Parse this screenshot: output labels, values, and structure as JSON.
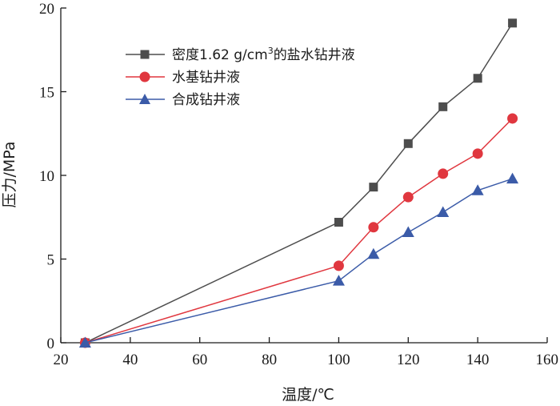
{
  "chart_data": {
    "type": "line",
    "title": "",
    "xlabel": "温度/℃",
    "ylabel": "压力/MPa",
    "xlim": [
      20,
      160
    ],
    "ylim": [
      0,
      20
    ],
    "xticks": [
      20,
      40,
      60,
      80,
      100,
      120,
      140,
      160
    ],
    "yticks": [
      0,
      5,
      10,
      15,
      20
    ],
    "grid": false,
    "legend_position": "top-left",
    "series": [
      {
        "name": "密度1.62 g/cm³的盐水钻井液",
        "label_main": "密度1.62 g/cm",
        "label_sup": "3",
        "label_tail": "的盐水钻井液",
        "marker": "square",
        "color": "#4d4d4d",
        "x": [
          27,
          100,
          110,
          120,
          130,
          140,
          150
        ],
        "y": [
          0,
          7.2,
          9.3,
          11.9,
          14.1,
          15.8,
          19.1
        ]
      },
      {
        "name": "水基钻井液",
        "marker": "circle",
        "color": "#e0373f",
        "x": [
          27,
          100,
          110,
          120,
          130,
          140,
          150
        ],
        "y": [
          0,
          4.6,
          6.9,
          8.7,
          10.1,
          11.3,
          13.4
        ]
      },
      {
        "name": "合成钻井液",
        "marker": "triangle",
        "color": "#3b5ba8",
        "x": [
          27,
          100,
          110,
          120,
          130,
          140,
          150
        ],
        "y": [
          0,
          3.7,
          5.3,
          6.6,
          7.8,
          9.1,
          9.8
        ]
      }
    ]
  }
}
